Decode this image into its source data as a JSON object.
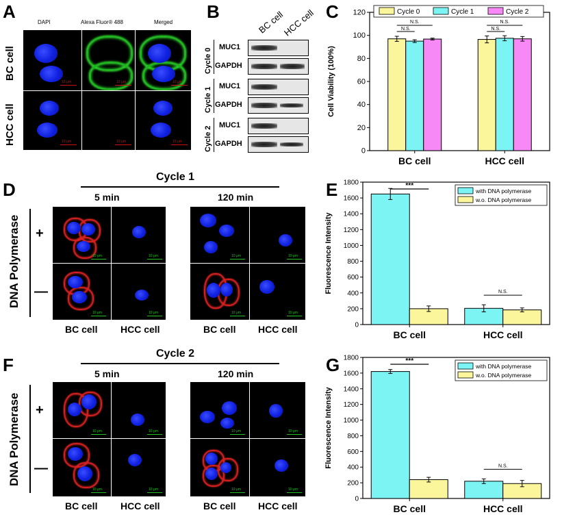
{
  "panels": {
    "A": "A",
    "B": "B",
    "C": "C",
    "D": "D",
    "E": "E",
    "F": "F",
    "G": "G"
  },
  "panel_a": {
    "headers": [
      "DAPI",
      "Alexa Fluor® 488",
      "Merged"
    ],
    "rows": [
      "BC cell",
      "HCC cell"
    ],
    "scale": "10 μm"
  },
  "panel_b": {
    "columns": [
      "BC cell",
      "HCC cell"
    ],
    "groups": [
      "Cycle 0",
      "Cycle 1",
      "Cycle 2"
    ],
    "bands": [
      "MUC1",
      "GAPDH"
    ]
  },
  "panel_d": {
    "cycle": "Cycle 1",
    "time1": "5 min",
    "time2": "120 min",
    "side": "DNA Polymerase",
    "plus": "+",
    "minus": "—",
    "xlabels": [
      "BC cell",
      "HCC cell",
      "BC cell",
      "HCC cell"
    ],
    "scale": "10 μm"
  },
  "panel_f": {
    "cycle": "Cycle 2",
    "time1": "5 min",
    "time2": "120 min",
    "side": "DNA Polymerase",
    "plus": "+",
    "minus": "—",
    "xlabels": [
      "BC cell",
      "HCC cell",
      "BC cell",
      "HCC cell"
    ],
    "scale": "10 μm"
  },
  "colors": {
    "yellow": "#fbf59c",
    "cyan": "#7cf4f4",
    "magenta": "#f789f7"
  },
  "chart_data": [
    {
      "id": "C",
      "type": "bar",
      "title": "",
      "categories": [
        "BC cell",
        "HCC cell"
      ],
      "series": [
        {
          "name": "Cycle 0",
          "values": [
            97,
            96.5
          ],
          "errors": [
            2.2,
            3.0
          ],
          "color": "#fbf59c"
        },
        {
          "name": "Cycle 1",
          "values": [
            95,
            97.5
          ],
          "errors": [
            1.2,
            2.2
          ],
          "color": "#7cf4f4"
        },
        {
          "name": "Cycle 2",
          "values": [
            96.8,
            97
          ],
          "errors": [
            0.8,
            2.0
          ],
          "color": "#f789f7"
        }
      ],
      "ylabel": "Cell Viability (100%)",
      "ylim": [
        0,
        120
      ],
      "yticks": [
        0,
        20,
        40,
        60,
        80,
        100,
        120
      ],
      "annotations": [
        "N.S.",
        "N.S.",
        "N.S.",
        "N.S."
      ],
      "legend": "top"
    },
    {
      "id": "E",
      "type": "bar",
      "categories": [
        "BC cell",
        "HCC cell"
      ],
      "series": [
        {
          "name": "with DNA polymerase",
          "values": [
            1650,
            205
          ],
          "errors": [
            70,
            45
          ],
          "color": "#7cf4f4"
        },
        {
          "name": "w.o. DNA polymerase",
          "values": [
            200,
            185
          ],
          "errors": [
            35,
            25
          ],
          "color": "#fbf59c"
        }
      ],
      "ylabel": "Fluorescence Intensity",
      "ylim": [
        0,
        1800
      ],
      "yticks": [
        0,
        200,
        400,
        600,
        800,
        1000,
        1200,
        1400,
        1600,
        1800
      ],
      "annotations": [
        "***",
        "N.S."
      ],
      "legend": "top-right"
    },
    {
      "id": "G",
      "type": "bar",
      "categories": [
        "BC cell",
        "HCC cell"
      ],
      "series": [
        {
          "name": "with DNA polymerase",
          "values": [
            1620,
            220
          ],
          "errors": [
            25,
            30
          ],
          "color": "#7cf4f4"
        },
        {
          "name": "w.o. DNA polymerase",
          "values": [
            240,
            190
          ],
          "errors": [
            30,
            40
          ],
          "color": "#fbf59c"
        }
      ],
      "ylabel": "Fluorescence Intensity",
      "ylim": [
        0,
        1800
      ],
      "yticks": [
        0,
        200,
        400,
        600,
        800,
        1000,
        1200,
        1400,
        1600,
        1800
      ],
      "annotations": [
        "***",
        "N.S."
      ],
      "legend": "top-right"
    }
  ]
}
